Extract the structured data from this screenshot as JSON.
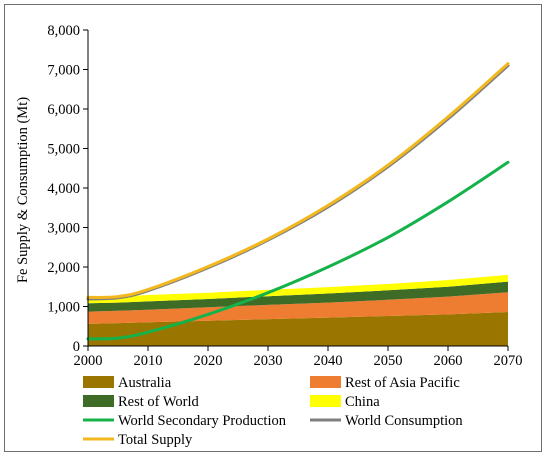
{
  "chart_data": {
    "type": "area",
    "ylabel": "Fe Supply & Consumption (Mt)",
    "xlabel": "",
    "xlim": [
      2000,
      2070
    ],
    "ylim": [
      0,
      8000
    ],
    "x_ticks": [
      "2000",
      "2010",
      "2020",
      "2030",
      "2040",
      "2050",
      "2060",
      "2070"
    ],
    "y_ticks": [
      "0",
      "1,000",
      "2,000",
      "3,000",
      "4,000",
      "5,000",
      "6,000",
      "7,000",
      "8,000"
    ],
    "grid": false,
    "legend_position": "bottom",
    "x": [
      2000,
      2005,
      2010,
      2020,
      2030,
      2040,
      2050,
      2060,
      2070
    ],
    "stacked_series": [
      {
        "name": "Australia",
        "color": "#9a7600",
        "values": [
          560,
          580,
          600,
          640,
          680,
          720,
          760,
          800,
          860
        ]
      },
      {
        "name": "Rest of Asia Pacific",
        "color": "#ee7d31",
        "values": [
          310,
          310,
          320,
          340,
          360,
          380,
          410,
          450,
          500
        ]
      },
      {
        "name": "Rest of World",
        "color": "#3e6b26",
        "values": [
          210,
          210,
          210,
          210,
          220,
          230,
          240,
          250,
          270
        ]
      },
      {
        "name": "China",
        "color": "#ffff00",
        "values": [
          150,
          150,
          160,
          160,
          160,
          160,
          160,
          170,
          170
        ]
      }
    ],
    "line_series": [
      {
        "name": "World Secondary Production",
        "color": "#15b24a",
        "values": [
          180,
          200,
          350,
          800,
          1350,
          2000,
          2750,
          3650,
          4650
        ]
      },
      {
        "name": "World Consumption",
        "color": "#7f7f7f",
        "values": [
          1190,
          1220,
          1400,
          1980,
          2680,
          3520,
          4540,
          5750,
          7100
        ]
      },
      {
        "name": "Total Supply",
        "color": "#f2b81e",
        "values": [
          1230,
          1250,
          1430,
          2010,
          2710,
          3560,
          4580,
          5800,
          7150
        ]
      }
    ],
    "legend": [
      {
        "label": "Australia",
        "kind": "box",
        "color": "#9a7600"
      },
      {
        "label": "Rest of Asia Pacific",
        "kind": "box",
        "color": "#ee7d31"
      },
      {
        "label": "Rest of World",
        "kind": "box",
        "color": "#3e6b26"
      },
      {
        "label": "China",
        "kind": "box",
        "color": "#ffff00"
      },
      {
        "label": "World Secondary Production",
        "kind": "line",
        "color": "#15b24a"
      },
      {
        "label": "World Consumption",
        "kind": "line",
        "color": "#7f7f7f"
      },
      {
        "label": "Total Supply",
        "kind": "line",
        "color": "#f2b81e"
      }
    ]
  }
}
